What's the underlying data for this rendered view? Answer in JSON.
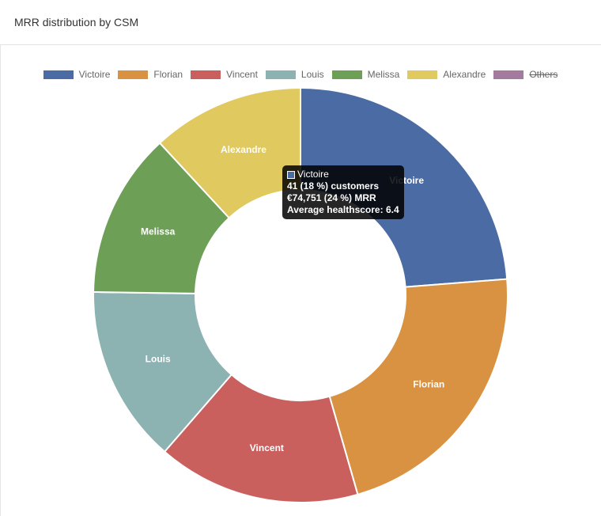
{
  "panel": {
    "title": "MRR distribution by CSM"
  },
  "chart_data": {
    "type": "pie",
    "donut": true,
    "title": "MRR distribution by CSM",
    "legend_position": "top",
    "labels": [
      "Victoire",
      "Florian",
      "Vincent",
      "Louis",
      "Melissa",
      "Alexandre",
      "Others"
    ],
    "values": [
      24,
      22,
      16,
      14,
      13,
      12,
      0
    ],
    "colors": [
      "#4a6ba3",
      "#d99241",
      "#c9605e",
      "#8cb3b2",
      "#6e9f57",
      "#e0c95f",
      "#a47a9f"
    ],
    "hidden": [
      "Others"
    ]
  },
  "legend": [
    {
      "label": "Victoire",
      "color": "#4a6ba3"
    },
    {
      "label": "Florian",
      "color": "#d99241"
    },
    {
      "label": "Vincent",
      "color": "#c9605e"
    },
    {
      "label": "Louis",
      "color": "#8cb3b2"
    },
    {
      "label": "Melissa",
      "color": "#6e9f57"
    },
    {
      "label": "Alexandre",
      "color": "#e0c95f"
    },
    {
      "label": "Others",
      "color": "#a47a9f",
      "hidden": true
    }
  ],
  "tooltip": {
    "title": "Victoire",
    "color": "#4a6ba3",
    "line1": "41 (18 %) customers",
    "line2": "€74,751 (24 %) MRR",
    "line3": "Average healthscore: 6.4"
  }
}
